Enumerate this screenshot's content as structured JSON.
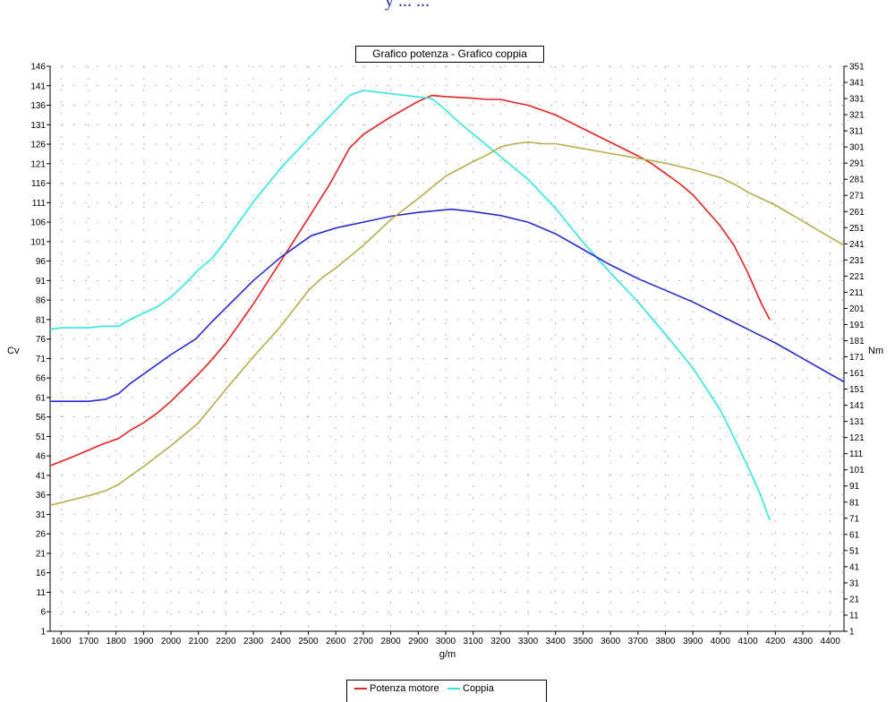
{
  "header": {
    "fragment_text": "y ... ..."
  },
  "chart_data": {
    "type": "line",
    "title": "Grafico potenza - Grafico coppia",
    "xlabel": "g/m",
    "ylabel_left": "Cv",
    "ylabel_right": "Nm",
    "xlim": [
      1560,
      4450
    ],
    "ylim_left": [
      1,
      146
    ],
    "ylim_right": [
      1,
      351
    ],
    "x_ticks": [
      1600,
      1700,
      1800,
      1900,
      2000,
      2100,
      2200,
      2300,
      2400,
      2500,
      2600,
      2700,
      2800,
      2900,
      3000,
      3100,
      3200,
      3300,
      3400,
      3500,
      3600,
      3700,
      3800,
      3900,
      4000,
      4100,
      4200,
      4300,
      4400
    ],
    "y_left_ticks": [
      1,
      6,
      11,
      16,
      21,
      26,
      31,
      36,
      41,
      46,
      51,
      56,
      61,
      66,
      71,
      76,
      81,
      86,
      91,
      96,
      101,
      106,
      111,
      116,
      121,
      126,
      131,
      136,
      141,
      146
    ],
    "y_right_ticks": [
      1,
      11,
      21,
      31,
      41,
      51,
      61,
      71,
      81,
      91,
      101,
      111,
      121,
      131,
      141,
      151,
      161,
      171,
      181,
      191,
      201,
      211,
      221,
      231,
      241,
      251,
      261,
      271,
      281,
      291,
      301,
      311,
      321,
      331,
      341,
      351
    ],
    "grid": true,
    "legend_position": "bottom",
    "series": [
      {
        "name": "Potenza motore",
        "color": "#e32222",
        "axis": "left",
        "x": [
          1560,
          1650,
          1700,
          1750,
          1810,
          1850,
          1900,
          1950,
          2000,
          2050,
          2100,
          2140,
          2200,
          2300,
          2400,
          2500,
          2580,
          2650,
          2700,
          2800,
          2900,
          2950,
          3000,
          3050,
          3100,
          3150,
          3200,
          3250,
          3300,
          3400,
          3500,
          3600,
          3700,
          3750,
          3800,
          3850,
          3900,
          4000,
          4050,
          4100,
          4150,
          4180
        ],
        "y": [
          43.5,
          46,
          47.5,
          49,
          50.5,
          52.5,
          54.5,
          57,
          60,
          63.5,
          67,
          70,
          75,
          85,
          96,
          107,
          116,
          125,
          128.5,
          133,
          137,
          138.5,
          138.2,
          138,
          137.8,
          137.5,
          137.5,
          136.7,
          136,
          133.5,
          130,
          126.5,
          123,
          121,
          118.5,
          116,
          113,
          105,
          100,
          93,
          85,
          81
        ]
      },
      {
        "name": "Coppia",
        "color": "#33e6e6",
        "axis": "right",
        "x": [
          1560,
          1600,
          1700,
          1750,
          1810,
          1850,
          1900,
          1950,
          2000,
          2050,
          2100,
          2150,
          2200,
          2300,
          2400,
          2500,
          2600,
          2650,
          2700,
          2750,
          2800,
          2900,
          2950,
          3000,
          3050,
          3100,
          3150,
          3200,
          3300,
          3400,
          3500,
          3600,
          3700,
          3800,
          3900,
          4000,
          4050,
          4100,
          4140,
          4180
        ],
        "y": [
          188,
          189,
          189,
          190,
          190,
          194,
          198,
          202,
          208,
          216,
          225,
          232,
          243,
          267,
          288,
          306,
          324,
          333,
          336,
          335,
          334,
          332,
          331,
          324,
          316,
          309,
          302,
          295,
          281,
          263,
          242,
          223,
          205,
          185,
          164,
          138,
          121,
          103,
          88,
          70
        ]
      },
      {
        "name": "",
        "color": "#2a2acc",
        "axis": "left",
        "x": [
          1560,
          1600,
          1700,
          1760,
          1810,
          1850,
          1900,
          2000,
          2090,
          2150,
          2200,
          2300,
          2400,
          2510,
          2600,
          2700,
          2800,
          2900,
          3020,
          3100,
          3200,
          3300,
          3400,
          3500,
          3600,
          3700,
          3800,
          3900,
          4000,
          4100,
          4200,
          4300,
          4450
        ],
        "y": [
          60,
          60,
          60,
          60.5,
          62,
          64.5,
          67,
          72,
          76,
          80.5,
          84,
          91,
          97,
          102.5,
          104.5,
          106,
          107.5,
          108.5,
          109.3,
          108.7,
          107.7,
          106,
          103,
          99,
          95,
          91.5,
          88.5,
          85.5,
          82,
          78.5,
          75,
          71,
          65
        ]
      },
      {
        "name": "",
        "color": "#b8ad4e",
        "axis": "right",
        "x": [
          1560,
          1700,
          1760,
          1810,
          1850,
          1900,
          2000,
          2100,
          2200,
          2300,
          2400,
          2500,
          2550,
          2600,
          2700,
          2800,
          2900,
          3000,
          3100,
          3150,
          3200,
          3250,
          3300,
          3350,
          3400,
          3500,
          3600,
          3700,
          3800,
          3900,
          4000,
          4050,
          4100,
          4200,
          4300,
          4450
        ],
        "y": [
          79,
          85,
          88,
          92,
          97,
          103,
          116,
          130,
          151,
          171,
          190,
          212,
          220,
          226,
          240,
          256,
          269,
          283,
          292,
          296,
          301,
          303,
          304,
          303,
          303,
          300,
          297,
          294,
          291,
          287,
          282,
          278,
          273,
          265,
          255,
          240
        ]
      }
    ]
  },
  "legend": {
    "items": [
      "Potenza motore",
      "Coppia"
    ]
  }
}
